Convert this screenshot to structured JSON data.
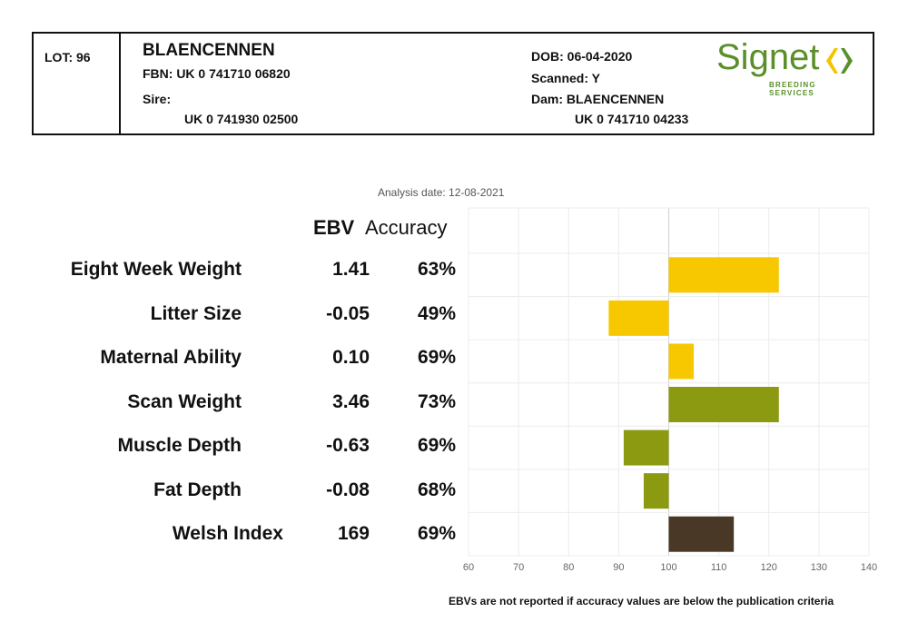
{
  "header": {
    "lot": "LOT: 96",
    "name": "BLAENCENNEN",
    "fbn": "FBN: UK 0 741710 06820",
    "sire_label": "Sire:",
    "sire_id": "UK 0 741930 02500",
    "dob": "DOB: 06-04-2020",
    "scanned": "Scanned: Y",
    "dam": "Dam: BLAENCENNEN",
    "dam_id": "UK 0 741710 04233"
  },
  "logo": {
    "word": "Signet",
    "sub": "BREEDING SERVICES",
    "color": "#5a8f29",
    "accent": "#f5c400"
  },
  "analysis_date": "Analysis date: 12-08-2021",
  "columns": {
    "ebv": "EBV",
    "accuracy": "Accuracy"
  },
  "traits": [
    {
      "name": "Eight Week Weight",
      "ebv": "1.41",
      "accuracy": "63%"
    },
    {
      "name": "Litter Size",
      "ebv": "-0.05",
      "accuracy": "49%"
    },
    {
      "name": "Maternal Ability",
      "ebv": "0.10",
      "accuracy": "69%"
    },
    {
      "name": "Scan Weight",
      "ebv": "3.46",
      "accuracy": "73%"
    },
    {
      "name": "Muscle Depth",
      "ebv": "-0.63",
      "accuracy": "69%"
    },
    {
      "name": "Fat Depth",
      "ebv": "-0.08",
      "accuracy": "68%"
    },
    {
      "name": "Welsh Index",
      "ebv": "169",
      "accuracy": "69%"
    }
  ],
  "chart_data": {
    "type": "bar",
    "orientation": "horizontal",
    "baseline": 100,
    "xlim": [
      60,
      140
    ],
    "xticks": [
      "60",
      "70",
      "80",
      "90",
      "100",
      "110",
      "120",
      "130",
      "140"
    ],
    "grid": true,
    "categories": [
      "Eight Week Weight",
      "Litter Size",
      "Maternal Ability",
      "Scan Weight",
      "Muscle Depth",
      "Fat Depth",
      "Welsh Index"
    ],
    "values": [
      122,
      88,
      105,
      122,
      91,
      95,
      113
    ],
    "colors": [
      "#f7c800",
      "#f7c800",
      "#f7c800",
      "#8c9a12",
      "#8c9a12",
      "#8c9a12",
      "#4a3826"
    ]
  },
  "footnote": "EBVs are not reported if accuracy values are below the publication criteria"
}
